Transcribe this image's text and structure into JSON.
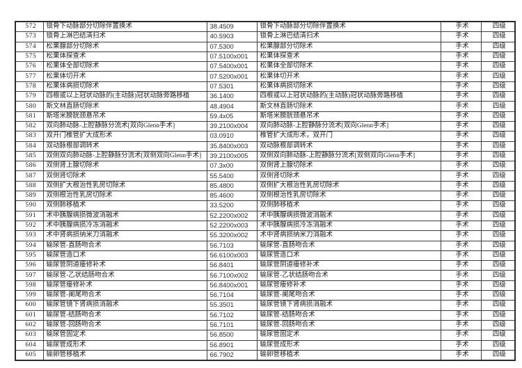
{
  "document": {
    "type": "procedure-grading-table-page",
    "category_label": "手术",
    "level_label": "四级",
    "colors": {
      "page_bg": "#ffffff",
      "border": "#3d3d3d",
      "outer_border": "#2b2b2b",
      "text": "#212121"
    }
  },
  "table": {
    "rows": [
      {
        "no": "572",
        "name": "锁骨下动脉部分切除伴置换术",
        "code": "38.4509",
        "name2": "锁骨下动脉部分切除伴置换术",
        "category": "手术",
        "level": "四级"
      },
      {
        "no": "573",
        "name": "锁骨上淋巴结清扫术",
        "code": "40.5903",
        "name2": "锁骨上淋巴结清扫术",
        "category": "手术",
        "level": "四级"
      },
      {
        "no": "574",
        "name": "松果腺部分切除术",
        "code": "07.5300",
        "name2": "松果腺部分切除术",
        "category": "手术",
        "level": "四级"
      },
      {
        "no": "575",
        "name": "松果体探查术",
        "code": "07.5100x001",
        "name2": "松果体探查术",
        "category": "手术",
        "level": "四级"
      },
      {
        "no": "576",
        "name": "松果体全部切除术",
        "code": "07.5400x001",
        "name2": "松果体全部切除术",
        "category": "手术",
        "level": "四级"
      },
      {
        "no": "577",
        "name": "松果体切开术",
        "code": "07.5200x001",
        "name2": "松果体切开术",
        "category": "手术",
        "level": "四级"
      },
      {
        "no": "578",
        "name": "松果体病损切除术",
        "code": "07.5301",
        "name2": "松果体病损切除术",
        "category": "手术",
        "level": "四级"
      },
      {
        "no": "579",
        "name": "四根或以上冠状动脉的(主动脉)冠状动脉旁路移植",
        "code": "36.1400",
        "name2": "四根或以上冠状动脉的(主动脉)冠状动脉旁路移植",
        "category": "手术",
        "level": "四级"
      },
      {
        "no": "580",
        "name": "斯文林直肠切除术",
        "code": "48.4904",
        "name2": "斯文林直肠切除术",
        "category": "手术",
        "level": "四级"
      },
      {
        "no": "581",
        "name": "斯塔米膀胱颈悬吊术",
        "code": "59.4x05",
        "name2": "斯塔米膀胱颈悬吊术",
        "category": "手术",
        "level": "四级"
      },
      {
        "no": "582",
        "name": "双向肺动脉-上腔静脉分流术[双向Glenn手术]",
        "code": "39.2100x004",
        "name2": "双向肺动脉-上腔静脉分流术[双向Glenn手术]",
        "category": "手术",
        "level": "四级"
      },
      {
        "no": "583",
        "name": "双开门椎管扩大成形术",
        "code": "03.0910",
        "name2": "椎管扩大成形术，双开门",
        "category": "手术",
        "level": "四级"
      },
      {
        "no": "584",
        "name": "双动脉根部调转术",
        "code": "35.8400x003",
        "name2": "双动脉根部调转术",
        "category": "手术",
        "level": "四级"
      },
      {
        "no": "585",
        "name": "双侧双向肺动脉-上腔静脉分流术[双侧双向Glenn手术]",
        "code": "39.2100x005",
        "name2": "双侧双向肺动脉-上腔静脉分流术[双侧双向Glenn手术]",
        "category": "手术",
        "level": "四级"
      },
      {
        "no": "586",
        "name": "双侧肾上腺切除术",
        "code": "07.3x00",
        "name2": "双侧肾上腺切除术",
        "category": "手术",
        "level": "四级"
      },
      {
        "no": "587",
        "name": "双侧肾切除术",
        "code": "55.5400",
        "name2": "双侧肾切除术",
        "category": "手术",
        "level": "四级"
      },
      {
        "no": "588",
        "name": "双侧扩大根治性乳房切除术",
        "code": "85.4800",
        "name2": "双侧扩大根治性乳房切除术",
        "category": "手术",
        "level": "四级"
      },
      {
        "no": "589",
        "name": "双侧根治性乳房切除术",
        "code": "85.4600",
        "name2": "双侧根治性乳房切除术",
        "category": "手术",
        "level": "四级"
      },
      {
        "no": "590",
        "name": "双侧肺移植术",
        "code": "33.5200",
        "name2": "双侧肺移植术",
        "category": "手术",
        "level": "四级"
      },
      {
        "no": "591",
        "name": "术中胰腺病损微波消融术",
        "code": "52.2200x002",
        "name2": "术中胰腺病损微波消融术",
        "category": "手术",
        "level": "四级"
      },
      {
        "no": "592",
        "name": "术中胰腺病损冷冻消融术",
        "code": "52.2200x003",
        "name2": "术中胰腺病损冷冻消融术",
        "category": "手术",
        "level": "四级"
      },
      {
        "no": "593",
        "name": "术中肾病损纳米刀消融术",
        "code": "55.3200x002",
        "name2": "术中肾病损纳米刀消融术",
        "category": "手术",
        "level": "四级"
      },
      {
        "no": "594",
        "name": "输尿管-直肠吻合术",
        "code": "56.7103",
        "name2": "输尿管-直肠吻合术",
        "category": "手术",
        "level": "四级"
      },
      {
        "no": "595",
        "name": "输尿管造口术",
        "code": "56.6100x003",
        "name2": "输尿管造口术",
        "category": "手术",
        "level": "四级"
      },
      {
        "no": "596",
        "name": "输尿管阴道瘘修补术",
        "code": "56.8401",
        "name2": "输尿管阴道瘘修补术",
        "category": "手术",
        "level": "四级"
      },
      {
        "no": "597",
        "name": "输尿管-乙状结肠吻合术",
        "code": "56.7100x002",
        "name2": "输尿管-乙状结肠吻合术",
        "category": "手术",
        "level": "四级"
      },
      {
        "no": "598",
        "name": "输尿管瘘修补术",
        "code": "56.8400x001",
        "name2": "输尿管瘘修补术",
        "category": "手术",
        "level": "四级"
      },
      {
        "no": "599",
        "name": "输尿管-阑尾吻合术",
        "code": "56.7104",
        "name2": "输尿管-阑尾吻合术",
        "category": "手术",
        "level": "四级"
      },
      {
        "no": "600",
        "name": "输尿管镜下肾病损消融术",
        "code": "55.3501",
        "name2": "输尿管镜下肾病损消融术",
        "category": "手术",
        "level": "四级"
      },
      {
        "no": "601",
        "name": "输尿管-结肠吻合术",
        "code": "56.7102",
        "name2": "输尿管-结肠吻合术",
        "category": "手术",
        "level": "四级"
      },
      {
        "no": "602",
        "name": "输尿管-回肠吻合术",
        "code": "56.7101",
        "name2": "输尿管-回肠吻合术",
        "category": "手术",
        "level": "四级"
      },
      {
        "no": "603",
        "name": "输尿管固定术",
        "code": "56.8500",
        "name2": "输尿管固定术",
        "category": "手术",
        "level": "四级"
      },
      {
        "no": "604",
        "name": "输尿管成形术",
        "code": "56.8901",
        "name2": "输尿管成形术",
        "category": "手术",
        "level": "四级"
      },
      {
        "no": "605",
        "name": "输卵管移植术",
        "code": "66.7902",
        "name2": "输卵管移植术",
        "category": "手术",
        "level": "四级"
      }
    ]
  }
}
